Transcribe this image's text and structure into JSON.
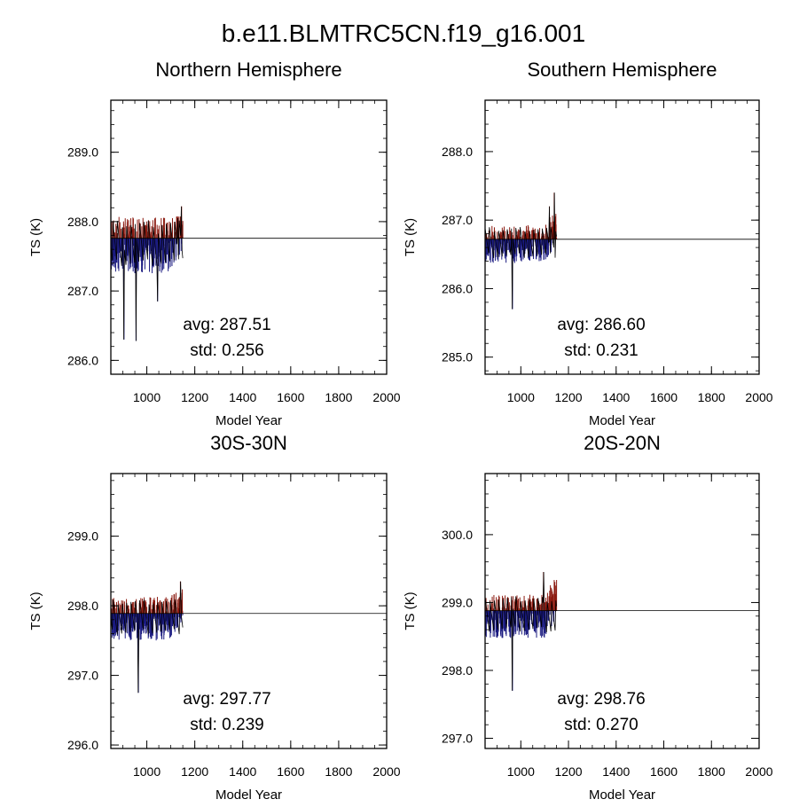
{
  "figure_title": "b.e11.BLMTRC5CN.f19_g16.001",
  "colors": {
    "trace": "#000000",
    "above": "#8b1a10",
    "below": "#1a1a80",
    "mean_line": "#000000"
  },
  "chart_data": [
    {
      "type": "line",
      "title": "Northern Hemisphere",
      "xlabel": "Model Year",
      "ylabel": "TS (K)",
      "xlim": [
        850,
        2000
      ],
      "ylim": [
        285.8,
        289.75
      ],
      "x_ticks": [
        1000,
        1200,
        1400,
        1600,
        1800,
        2000
      ],
      "y_ticks": [
        "286.0",
        "287.0",
        "288.0",
        "289.0"
      ],
      "mean": 287.76,
      "x_start": 850,
      "x_end": 1150,
      "min_value": 286.28,
      "max_value": 288.22,
      "spikes": [
        [
          905,
          286.3
        ],
        [
          955,
          286.28
        ],
        [
          1045,
          286.85
        ],
        [
          1145,
          288.22
        ],
        [
          1130,
          288.05
        ]
      ],
      "avg_text": "avg: 287.51",
      "std_text": "std:  0.256"
    },
    {
      "type": "line",
      "title": "Southern Hemisphere",
      "xlabel": "Model Year",
      "ylabel": "TS (K)",
      "xlim": [
        850,
        2000
      ],
      "ylim": [
        284.75,
        288.75
      ],
      "x_ticks": [
        1000,
        1200,
        1400,
        1600,
        1800,
        2000
      ],
      "y_ticks": [
        "285.0",
        "286.0",
        "287.0",
        "288.0"
      ],
      "mean": 286.72,
      "x_start": 850,
      "x_end": 1150,
      "min_value": 285.7,
      "max_value": 287.4,
      "spikes": [
        [
          965,
          285.7
        ],
        [
          1140,
          287.4
        ],
        [
          1120,
          287.2
        ]
      ],
      "avg_text": "avg: 286.60",
      "std_text": "std:  0.231"
    },
    {
      "type": "line",
      "title": "30S-30N",
      "xlabel": "Model Year",
      "ylabel": "TS (K)",
      "xlim": [
        850,
        2000
      ],
      "ylim": [
        295.95,
        299.9
      ],
      "x_ticks": [
        1000,
        1200,
        1400,
        1600,
        1800,
        2000
      ],
      "y_ticks": [
        "296.0",
        "297.0",
        "298.0",
        "299.0"
      ],
      "mean": 297.89,
      "x_start": 850,
      "x_end": 1150,
      "min_value": 296.75,
      "max_value": 298.35,
      "spikes": [
        [
          965,
          296.75
        ],
        [
          1140,
          298.35
        ]
      ],
      "avg_text": "avg: 297.77",
      "std_text": "std:  0.239"
    },
    {
      "type": "line",
      "title": "20S-20N",
      "xlabel": "Model Year",
      "ylabel": "TS (K)",
      "xlim": [
        850,
        2000
      ],
      "ylim": [
        296.85,
        300.9
      ],
      "x_ticks": [
        1000,
        1200,
        1400,
        1600,
        1800,
        2000
      ],
      "y_ticks": [
        "297.0",
        "298.0",
        "299.0",
        "300.0"
      ],
      "mean": 298.88,
      "x_start": 850,
      "x_end": 1150,
      "min_value": 297.7,
      "max_value": 299.45,
      "spikes": [
        [
          965,
          297.7
        ],
        [
          1095,
          299.45
        ]
      ],
      "avg_text": "avg: 298.76",
      "std_text": "std:  0.270"
    }
  ]
}
